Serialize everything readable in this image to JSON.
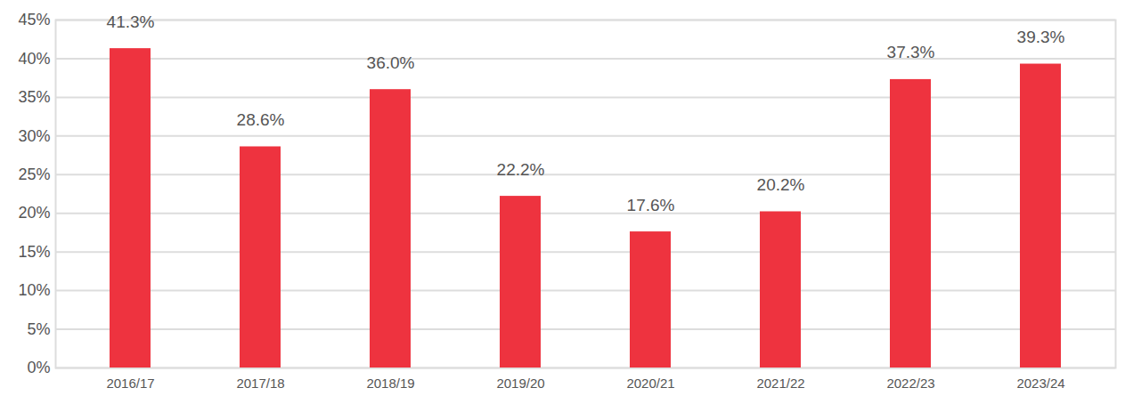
{
  "chart_data": {
    "type": "bar",
    "categories": [
      "2016/17",
      "2017/18",
      "2018/19",
      "2019/20",
      "2020/21",
      "2021/22",
      "2022/23",
      "2023/24"
    ],
    "values": [
      41.3,
      28.6,
      36.0,
      22.2,
      17.6,
      20.2,
      37.3,
      39.3
    ],
    "value_labels": [
      "41.3%",
      "28.6%",
      "36.0%",
      "22.2%",
      "17.6%",
      "20.2%",
      "37.3%",
      "39.3%"
    ],
    "data_labels": true,
    "color": "#ee333f",
    "ylim": [
      0,
      45
    ],
    "yticks": [
      {
        "value": 0,
        "label": "0%"
      },
      {
        "value": 5,
        "label": "5%"
      },
      {
        "value": 10,
        "label": "10%"
      },
      {
        "value": 15,
        "label": "15%"
      },
      {
        "value": 20,
        "label": "20%"
      },
      {
        "value": 25,
        "label": "25%"
      },
      {
        "value": 30,
        "label": "30%"
      },
      {
        "value": 35,
        "label": "35%"
      },
      {
        "value": 40,
        "label": "40%"
      },
      {
        "value": 45,
        "label": "45%"
      }
    ],
    "grid": true
  }
}
